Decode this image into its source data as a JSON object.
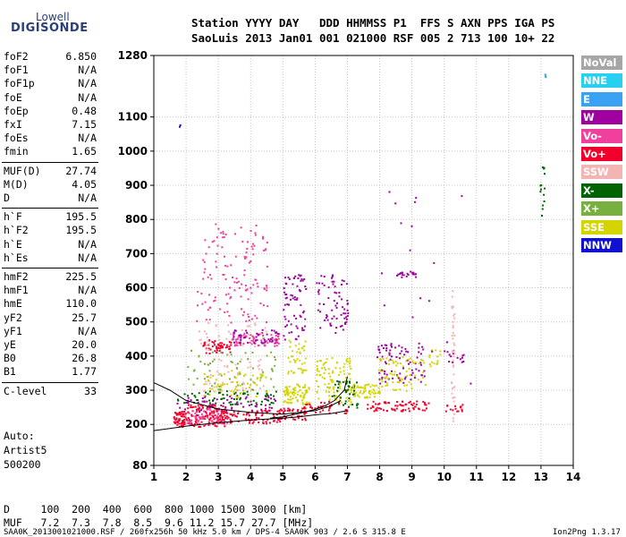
{
  "logo": {
    "line1": "Lowell",
    "line2": "DIGISONDE"
  },
  "header": {
    "labels": "Station YYYY DAY   DDD HHMMSS P1  FFS S AXN PPS IGA PS",
    "values": "SaoLuis 2013 Jan01 001 021000 RSF 005 2 713 100 10+ 22"
  },
  "params": [
    {
      "k": "foF2",
      "v": "6.850"
    },
    {
      "k": "foF1",
      "v": "N/A"
    },
    {
      "k": "foF1p",
      "v": "N/A"
    },
    {
      "k": "foE",
      "v": "N/A"
    },
    {
      "k": "foEp",
      "v": "0.48"
    },
    {
      "k": "fxI",
      "v": "7.15"
    },
    {
      "k": "foEs",
      "v": "N/A"
    },
    {
      "k": "fmin",
      "v": "1.65"
    },
    {
      "k": "MUF(D)",
      "v": "27.74"
    },
    {
      "k": "M(D)",
      "v": "4.05"
    },
    {
      "k": "D",
      "v": "N/A"
    },
    {
      "k": "h`F",
      "v": "195.5"
    },
    {
      "k": "h`F2",
      "v": "195.5"
    },
    {
      "k": "h`E",
      "v": "N/A"
    },
    {
      "k": "h`Es",
      "v": "N/A"
    },
    {
      "k": "hmF2",
      "v": "225.5"
    },
    {
      "k": "hmF1",
      "v": "N/A"
    },
    {
      "k": "hmE",
      "v": "110.0"
    },
    {
      "k": "yF2",
      "v": "25.7"
    },
    {
      "k": "yF1",
      "v": "N/A"
    },
    {
      "k": "yE",
      "v": "20.0"
    },
    {
      "k": "B0",
      "v": "26.8"
    },
    {
      "k": "B1",
      "v": "1.77"
    },
    {
      "k": "C-level",
      "v": "33"
    }
  ],
  "misc": {
    "auto": "Auto:",
    "artist": "Artist5",
    "num": "500200"
  },
  "legend": [
    {
      "label": "NoVal",
      "color": "#a6a6a6"
    },
    {
      "label": "NNE",
      "color": "#28d0f0"
    },
    {
      "label": "E",
      "color": "#3aa2f4"
    },
    {
      "label": "W",
      "color": "#a000a0"
    },
    {
      "label": "Vo-",
      "color": "#f0409e"
    },
    {
      "label": "Vo+",
      "color": "#f0002a"
    },
    {
      "label": "SSW",
      "color": "#f4b4b4"
    },
    {
      "label": "X-",
      "color": "#006400"
    },
    {
      "label": "X+",
      "color": "#78b040"
    },
    {
      "label": "SSE",
      "color": "#d4d400"
    },
    {
      "label": "NNW",
      "color": "#1010d0"
    }
  ],
  "footer": {
    "dline": "D     100  200  400  600  800 1000 1500 3000 [km]",
    "mufline": "MUF   7.2  7.3  7.8  8.5  9.6 11.2 15.7 27.7 [MHz]",
    "credit": "SAA0K_2013001021000.RSF / 260fx256h 50 kHz 5.0 km / DPS-4 SAA0K 903 / 2.6 S 315.8 E",
    "version": "Ion2Png 1.3.17"
  },
  "chart_data": {
    "type": "scatter",
    "xlim": [
      1,
      14
    ],
    "ylim": [
      80,
      1280
    ],
    "xticks": [
      1,
      2,
      3,
      4,
      5,
      6,
      7,
      8,
      9,
      10,
      11,
      12,
      13,
      14
    ],
    "yticks": [
      80,
      200,
      300,
      400,
      500,
      600,
      700,
      800,
      900,
      1000,
      1100,
      1280
    ],
    "clusters": [
      {
        "x": [
          1.6,
          2.0
        ],
        "y": [
          195,
          240
        ],
        "color": "#f0002a",
        "n": 60
      },
      {
        "x": [
          2.0,
          3.2
        ],
        "y": [
          195,
          260
        ],
        "color": "#f0002a",
        "n": 120
      },
      {
        "x": [
          2.0,
          3.3
        ],
        "y": [
          200,
          250
        ],
        "color": "#f0409e",
        "n": 60
      },
      {
        "x": [
          1.7,
          4.8
        ],
        "y": [
          260,
          300
        ],
        "color": "#006400",
        "n": 70
      },
      {
        "x": [
          1.7,
          4.8
        ],
        "y": [
          240,
          290
        ],
        "color": "#a000a0",
        "n": 60
      },
      {
        "x": [
          3.0,
          5.0
        ],
        "y": [
          205,
          245
        ],
        "color": "#f0002a",
        "n": 90
      },
      {
        "x": [
          2.5,
          3.4
        ],
        "y": [
          410,
          450
        ],
        "color": "#f0002a",
        "n": 50
      },
      {
        "x": [
          3.4,
          4.9
        ],
        "y": [
          430,
          470
        ],
        "color": "#f0409e",
        "n": 70
      },
      {
        "x": [
          3.4,
          4.9
        ],
        "y": [
          440,
          480
        ],
        "color": "#a000a0",
        "n": 50
      },
      {
        "x": [
          2.3,
          4.5
        ],
        "y": [
          500,
          790
        ],
        "color": "#f0409e",
        "n": 130
      },
      {
        "x": [
          2.3,
          4.5
        ],
        "y": [
          300,
          500
        ],
        "color": "#f4b4b4",
        "n": 80
      },
      {
        "x": [
          2.0,
          4.8
        ],
        "y": [
          300,
          420
        ],
        "color": "#78b040",
        "n": 60
      },
      {
        "x": [
          2.5,
          4.5
        ],
        "y": [
          280,
          360
        ],
        "color": "#d4d400",
        "n": 60
      },
      {
        "x": [
          5.0,
          5.8
        ],
        "y": [
          260,
          320
        ],
        "color": "#d4d400",
        "n": 80
      },
      {
        "x": [
          5.0,
          5.7
        ],
        "y": [
          450,
          640
        ],
        "color": "#a000a0",
        "n": 70
      },
      {
        "x": [
          5.1,
          5.7
        ],
        "y": [
          350,
          450
        ],
        "color": "#d4d400",
        "n": 40
      },
      {
        "x": [
          4.8,
          5.7
        ],
        "y": [
          215,
          250
        ],
        "color": "#f0002a",
        "n": 40
      },
      {
        "x": [
          6.0,
          7.0
        ],
        "y": [
          470,
          640
        ],
        "color": "#a000a0",
        "n": 70
      },
      {
        "x": [
          6.0,
          7.1
        ],
        "y": [
          260,
          400
        ],
        "color": "#d4d400",
        "n": 100
      },
      {
        "x": [
          6.5,
          7.3
        ],
        "y": [
          250,
          330
        ],
        "color": "#006400",
        "n": 40
      },
      {
        "x": [
          5.6,
          7.0
        ],
        "y": [
          235,
          270
        ],
        "color": "#f0002a",
        "n": 40
      },
      {
        "x": [
          7.0,
          8.0
        ],
        "y": [
          280,
          320
        ],
        "color": "#d4d400",
        "n": 60
      },
      {
        "x": [
          7.9,
          9.4
        ],
        "y": [
          320,
          440
        ],
        "color": "#a000a0",
        "n": 80
      },
      {
        "x": [
          7.9,
          9.4
        ],
        "y": [
          300,
          400
        ],
        "color": "#d4d400",
        "n": 70
      },
      {
        "x": [
          7.6,
          9.5
        ],
        "y": [
          240,
          270
        ],
        "color": "#f0002a",
        "n": 70
      },
      {
        "x": [
          8.5,
          9.1
        ],
        "y": [
          633,
          650
        ],
        "color": "#a000a0",
        "n": 20
      },
      {
        "x": [
          9.5,
          9.9
        ],
        "y": [
          370,
          420
        ],
        "color": "#d4d400",
        "n": 15
      },
      {
        "x": [
          9.9,
          10.6
        ],
        "y": [
          380,
          420
        ],
        "color": "#a000a0",
        "n": 15
      },
      {
        "x": [
          10.0,
          10.6
        ],
        "y": [
          240,
          260
        ],
        "color": "#f0002a",
        "n": 15
      },
      {
        "x": [
          10.2,
          10.3
        ],
        "y": [
          200,
          600
        ],
        "color": "#f4b4b4",
        "n": 40
      },
      {
        "x": [
          12.95,
          13.1
        ],
        "y": [
          790,
          960
        ],
        "color": "#006400",
        "n": 14
      },
      {
        "x": [
          13.1,
          13.15
        ],
        "y": [
          1210,
          1230
        ],
        "color": "#3aa2f4",
        "n": 3
      },
      {
        "x": [
          1.7,
          1.8
        ],
        "y": [
          1070,
          1090
        ],
        "color": "#1010d0",
        "n": 2
      },
      {
        "x": [
          8.0,
          11.0
        ],
        "y": [
          300,
          900
        ],
        "color": "#a000a0",
        "n": 20
      }
    ],
    "traces": [
      {
        "x": [
          1,
          1.5,
          2,
          3,
          4,
          5,
          5.5,
          6,
          6.5,
          7.0
        ],
        "y": [
          182,
          188,
          195,
          205,
          213,
          218,
          222,
          228,
          232,
          240
        ]
      },
      {
        "x": [
          1,
          1.5,
          2,
          3,
          4,
          5,
          6,
          6.5,
          6.8
        ],
        "y": [
          322,
          300,
          270,
          245,
          235,
          230,
          240,
          255,
          270
        ]
      },
      {
        "x": [
          4.6,
          5,
          5.5,
          6.0,
          6.3,
          6.6,
          6.9,
          7.0
        ],
        "y": [
          218,
          222,
          232,
          244,
          254,
          270,
          300,
          340
        ]
      }
    ]
  }
}
